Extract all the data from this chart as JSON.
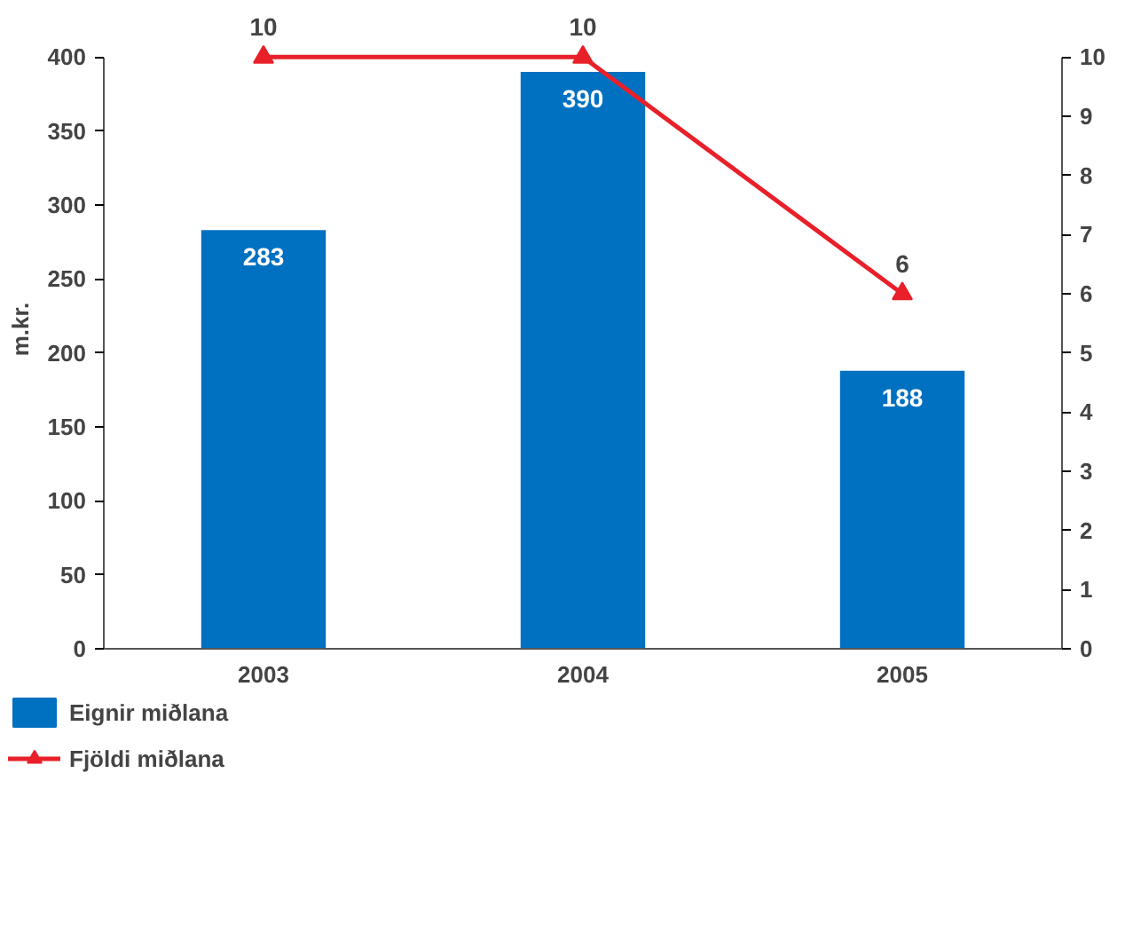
{
  "chart_data": {
    "type": "bar",
    "categories": [
      "2003",
      "2004",
      "2005"
    ],
    "ylabel": "m.kr.",
    "ylim": [
      0,
      400
    ],
    "yticks": [
      0,
      50,
      100,
      150,
      200,
      250,
      300,
      350,
      400
    ],
    "y2lim": [
      0,
      10
    ],
    "y2ticks": [
      0,
      1,
      2,
      3,
      4,
      5,
      6,
      7,
      8,
      9,
      10
    ],
    "grid": false,
    "legend": "bottom left",
    "series": [
      {
        "name": "Eignir miðlana",
        "color": "#0070c0",
        "values": [
          283,
          390,
          188
        ],
        "data_labels": true
      },
      {
        "name": "Fjöldi miðlana",
        "type": "line",
        "axis": "y2",
        "color": "#e8202a",
        "values": [
          10,
          10,
          6
        ],
        "marker": "triangle",
        "data_labels": true
      }
    ]
  }
}
